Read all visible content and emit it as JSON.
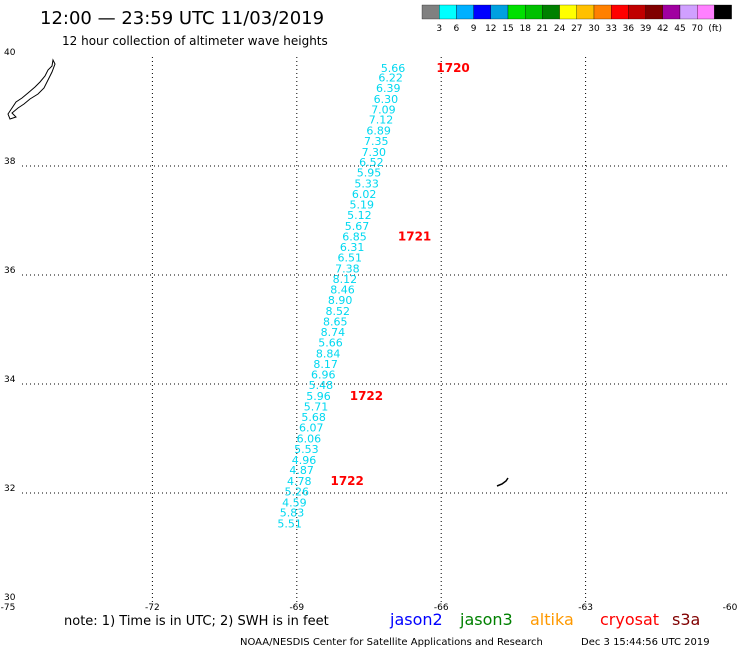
{
  "title": "12:00 — 23:59 UTC 11/03/2019",
  "subtitle": "12 hour collection of altimeter wave heights",
  "legend": {
    "colors": [
      "#808080",
      "#00ffff",
      "#00b0ff",
      "#0000ff",
      "#00a0e0",
      "#00e000",
      "#00c000",
      "#008000",
      "#ffff00",
      "#ffc000",
      "#ff8000",
      "#ff0000",
      "#c00000",
      "#800000",
      "#a000a0",
      "#d0a0ff",
      "#ff80ff",
      "#000000"
    ],
    "labels": [
      "3",
      "6",
      "9",
      "12",
      "15",
      "18",
      "21",
      "24",
      "27",
      "30",
      "33",
      "36",
      "39",
      "42",
      "45",
      "70"
    ],
    "unit": "(ft)"
  },
  "note": "note: 1) Time is in UTC; 2) SWH is in feet",
  "satellites": [
    {
      "name": "jason2",
      "color": "#0000ff"
    },
    {
      "name": "jason3",
      "color": "#008000"
    },
    {
      "name": "altika",
      "color": "#ff9900"
    },
    {
      "name": "cryosat",
      "color": "#ff0000"
    },
    {
      "name": "s3a",
      "color": "#800000"
    }
  ],
  "credit": "NOAA/NESDIS Center for Satellite Applications and Research",
  "timestamp": "Dec  3 15:44:56 UTC 2019",
  "chart_data": {
    "type": "scatter",
    "x_ticks": [
      "-75",
      "-72",
      "-69",
      "-66",
      "-63",
      "-60"
    ],
    "y_ticks": [
      "30",
      "32",
      "34",
      "36",
      "38",
      "40"
    ],
    "xlim": [
      -75,
      -60
    ],
    "ylim": [
      30,
      40
    ],
    "grid": true,
    "track_points": [
      {
        "lon": -67.0,
        "lat": 39.8,
        "value": "5.66"
      },
      {
        "lon": -67.05,
        "lat": 39.62,
        "value": "6.22"
      },
      {
        "lon": -67.1,
        "lat": 39.43,
        "value": "6.39"
      },
      {
        "lon": -67.15,
        "lat": 39.23,
        "value": "6.30"
      },
      {
        "lon": -67.2,
        "lat": 39.04,
        "value": "7.09"
      },
      {
        "lon": -67.25,
        "lat": 38.85,
        "value": "7.12"
      },
      {
        "lon": -67.3,
        "lat": 38.65,
        "value": "6.89"
      },
      {
        "lon": -67.35,
        "lat": 38.46,
        "value": "7.35"
      },
      {
        "lon": -67.4,
        "lat": 38.26,
        "value": "7.30"
      },
      {
        "lon": -67.45,
        "lat": 38.07,
        "value": "6.52"
      },
      {
        "lon": -67.5,
        "lat": 37.88,
        "value": "5.95"
      },
      {
        "lon": -67.55,
        "lat": 37.68,
        "value": "5.33"
      },
      {
        "lon": -67.6,
        "lat": 37.49,
        "value": "6.02"
      },
      {
        "lon": -67.65,
        "lat": 37.29,
        "value": "5.19"
      },
      {
        "lon": -67.7,
        "lat": 37.1,
        "value": "5.12"
      },
      {
        "lon": -67.75,
        "lat": 36.9,
        "value": "5.67"
      },
      {
        "lon": -67.8,
        "lat": 36.71,
        "value": "6.85"
      },
      {
        "lon": -67.85,
        "lat": 36.51,
        "value": "6.31"
      },
      {
        "lon": -67.9,
        "lat": 36.32,
        "value": "6.51"
      },
      {
        "lon": -67.95,
        "lat": 36.12,
        "value": "7.38"
      },
      {
        "lon": -68.0,
        "lat": 35.93,
        "value": "8.12"
      },
      {
        "lon": -68.05,
        "lat": 35.73,
        "value": "8.46"
      },
      {
        "lon": -68.1,
        "lat": 35.54,
        "value": "8.90"
      },
      {
        "lon": -68.15,
        "lat": 35.34,
        "value": "8.52"
      },
      {
        "lon": -68.2,
        "lat": 35.15,
        "value": "8.65"
      },
      {
        "lon": -68.25,
        "lat": 34.95,
        "value": "8.74"
      },
      {
        "lon": -68.3,
        "lat": 34.76,
        "value": "5.66"
      },
      {
        "lon": -68.35,
        "lat": 34.56,
        "value": "8.84"
      },
      {
        "lon": -68.4,
        "lat": 34.37,
        "value": "8.17"
      },
      {
        "lon": -68.45,
        "lat": 34.17,
        "value": "6.96"
      },
      {
        "lon": -68.5,
        "lat": 33.98,
        "value": "5.48"
      },
      {
        "lon": -68.55,
        "lat": 33.78,
        "value": "5.96"
      },
      {
        "lon": -68.6,
        "lat": 33.59,
        "value": "5.71"
      },
      {
        "lon": -68.65,
        "lat": 33.39,
        "value": "5.68"
      },
      {
        "lon": -68.7,
        "lat": 33.2,
        "value": "6.07"
      },
      {
        "lon": -68.75,
        "lat": 33.0,
        "value": "6.06"
      },
      {
        "lon": -68.8,
        "lat": 32.81,
        "value": "5.53"
      },
      {
        "lon": -68.85,
        "lat": 32.61,
        "value": "4.96"
      },
      {
        "lon": -68.9,
        "lat": 32.42,
        "value": "4.87"
      },
      {
        "lon": -68.95,
        "lat": 32.22,
        "value": "4.78"
      },
      {
        "lon": -69.0,
        "lat": 32.03,
        "value": "5.26"
      },
      {
        "lon": -69.05,
        "lat": 31.83,
        "value": "4.59"
      },
      {
        "lon": -69.1,
        "lat": 31.64,
        "value": "5.83"
      },
      {
        "lon": -69.15,
        "lat": 31.44,
        "value": "5.51"
      }
    ],
    "time_labels": [
      {
        "lon": -66.1,
        "lat": 39.8,
        "text": "1720"
      },
      {
        "lon": -66.9,
        "lat": 36.71,
        "text": "1721"
      },
      {
        "lon": -67.9,
        "lat": 33.78,
        "text": "1722"
      },
      {
        "lon": -68.3,
        "lat": 32.22,
        "text": "1722"
      }
    ]
  }
}
